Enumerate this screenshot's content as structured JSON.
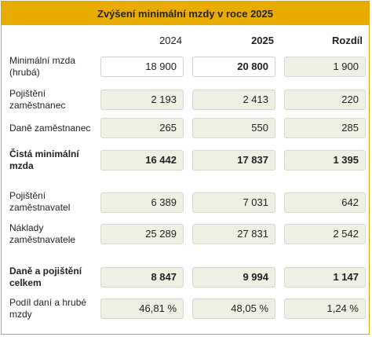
{
  "title": "Zvýšení minimální mzdy v roce 2025",
  "headers": {
    "col1": "2024",
    "col2": "2025",
    "col3": "Rozdíl"
  },
  "rows": [
    {
      "label": "Minimální mzda (hrubá)",
      "v2024": "18 900",
      "v2025": "20 800",
      "diff": "1 900"
    },
    {
      "label": "Pojištění zaměstnanec",
      "v2024": "2 193",
      "v2025": "2 413",
      "diff": "220"
    },
    {
      "label": "Daně zaměstnanec",
      "v2024": "265",
      "v2025": "550",
      "diff": "285"
    },
    {
      "label": "Čistá minimální mzda",
      "v2024": "16 442",
      "v2025": "17 837",
      "diff": "1 395"
    },
    {
      "label": "Pojištění zaměstnavatel",
      "v2024": "6 389",
      "v2025": "7 031",
      "diff": "642"
    },
    {
      "label": "Náklady zaměstnavatele",
      "v2024": "25 289",
      "v2025": "27 831",
      "diff": "2 542"
    },
    {
      "label": "Daně a pojištění celkem",
      "v2024": "8 847",
      "v2025": "9 994",
      "diff": "1 147"
    },
    {
      "label": "Podíl daní a hrubé mzdy",
      "v2024": "46,81 %",
      "v2025": "48,05 %",
      "diff": "1,24 %"
    }
  ],
  "colors": {
    "header_bg": "#e8ac00",
    "cell_bg": "#eff0e4",
    "border": "#d9a300"
  }
}
